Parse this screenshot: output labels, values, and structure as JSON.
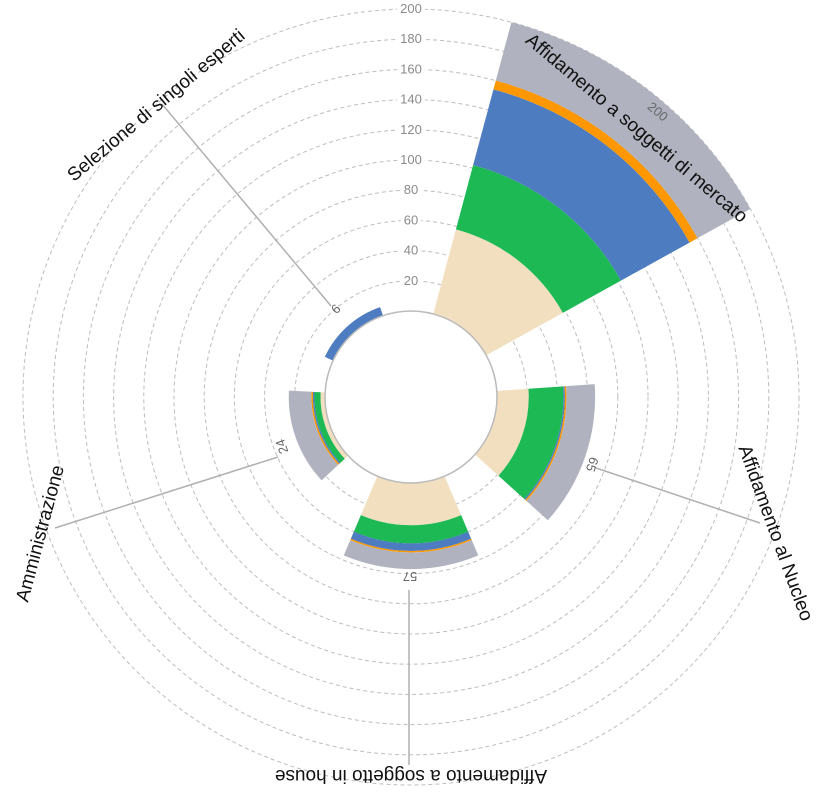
{
  "chart_data": {
    "type": "radial-stacked-bar",
    "title": "",
    "radial_axis": {
      "min": 0,
      "max": 200,
      "ticks": [
        "20",
        "40",
        "60",
        "80",
        "100",
        "120",
        "140",
        "160",
        "180",
        "200"
      ]
    },
    "grid": true,
    "segment_colors": [
      "#f2dfc0",
      "#1db954",
      "#4d7cc0",
      "#ff9800",
      "#b0b3bf"
    ],
    "categories": [
      {
        "label": "Affidamento a soggetti di mercato",
        "total_label": "200",
        "segments": [
          58,
          44,
          52,
          6,
          40
        ]
      },
      {
        "label": "Affidamento al Nucleo",
        "total_label": "65",
        "segments": [
          21,
          23,
          1,
          1,
          19
        ]
      },
      {
        "label": "Affidamento a soggetto in house",
        "total_label": "57",
        "segments": [
          28,
          12,
          5,
          1,
          11
        ]
      },
      {
        "label": "Amministrazione",
        "total_label": "24",
        "segments": [
          3,
          4,
          1,
          1,
          15
        ]
      },
      {
        "label": "Selezione di singoli esperti",
        "total_label": "6",
        "segments": [
          0,
          0,
          6,
          0,
          0
        ]
      }
    ]
  }
}
